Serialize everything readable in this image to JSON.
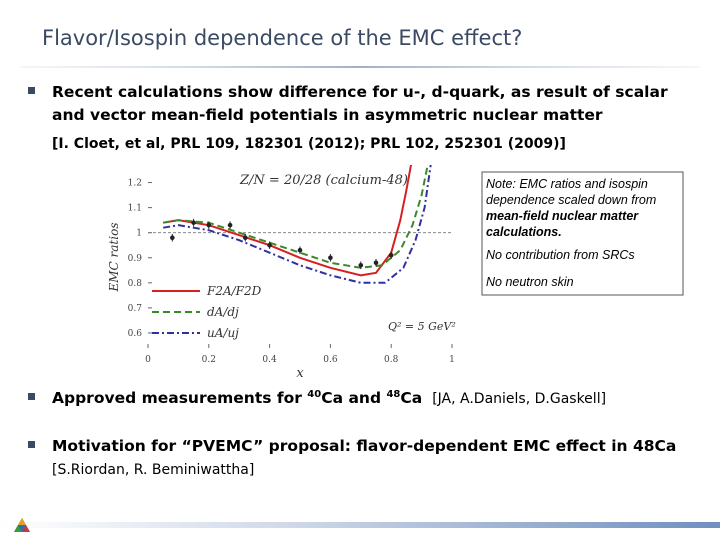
{
  "title": "Flavor/Isospin dependence of the EMC effect?",
  "bullets": [
    {
      "lines": [
        "Recent calculations show difference for u-, d-quark, as result of scalar",
        "and vector mean-field potentials in asymmetric nuclear matter"
      ],
      "citation": "[I. Cloet, et al, PRL 109, 182301 (2012); PRL 102, 252301 (2009)]"
    },
    {
      "segments": [
        {
          "text": "Approved measurements for "
        },
        {
          "text": "40",
          "sup": true
        },
        {
          "text": "Ca and "
        },
        {
          "text": "48",
          "sup": true
        },
        {
          "text": "Ca"
        }
      ],
      "citation": "[JA, A.Daniels, D.Gaskell]"
    },
    {
      "lines": [
        "Motivation for “PVEMC” proposal: flavor-dependent EMC effect in 48Ca"
      ],
      "citation": "[S.Riordan, R. Beminiwattha]"
    }
  ],
  "figure": {
    "type": "line",
    "annotation": "Z/N = 20/28   (calcium-48)",
    "xlabel": "x",
    "ylabel": "EMC ratios",
    "kinematics": "Q² = 5 GeV²",
    "xlim": [
      0,
      1
    ],
    "ylim": [
      0.54,
      1.27
    ],
    "xticks": [
      0,
      0.2,
      0.4,
      0.6,
      0.8,
      1
    ],
    "yticks": [
      0.6,
      0.7,
      0.8,
      0.9,
      1,
      1.1,
      1.2
    ],
    "reference_line": 1,
    "series": [
      {
        "name": "F2A/F2D",
        "color": "#d62020",
        "dash": "solid",
        "x": [
          0.05,
          0.1,
          0.2,
          0.3,
          0.4,
          0.5,
          0.6,
          0.7,
          0.75,
          0.8,
          0.83,
          0.85,
          0.865
        ],
        "values": [
          1.04,
          1.05,
          1.03,
          0.99,
          0.95,
          0.9,
          0.86,
          0.83,
          0.84,
          0.92,
          1.05,
          1.17,
          1.27
        ]
      },
      {
        "name": "dA/dj",
        "color": "#3a8a2a",
        "dash": "dashed",
        "x": [
          0.05,
          0.1,
          0.2,
          0.3,
          0.4,
          0.5,
          0.6,
          0.7,
          0.77,
          0.83,
          0.87,
          0.9,
          0.92
        ],
        "values": [
          1.04,
          1.05,
          1.04,
          1.0,
          0.96,
          0.92,
          0.88,
          0.86,
          0.87,
          0.93,
          1.03,
          1.15,
          1.27
        ]
      },
      {
        "name": "uA/uj",
        "color": "#3030a0",
        "dash": "dashdot",
        "x": [
          0.05,
          0.1,
          0.2,
          0.3,
          0.4,
          0.5,
          0.6,
          0.7,
          0.78,
          0.84,
          0.88,
          0.91,
          0.93
        ],
        "values": [
          1.02,
          1.03,
          1.01,
          0.97,
          0.92,
          0.87,
          0.83,
          0.8,
          0.8,
          0.86,
          0.97,
          1.1,
          1.27
        ]
      }
    ],
    "points": {
      "x": [
        0.08,
        0.15,
        0.2,
        0.27,
        0.32,
        0.4,
        0.5,
        0.6,
        0.7,
        0.75,
        0.8
      ],
      "values": [
        0.98,
        1.04,
        1.03,
        1.03,
        0.98,
        0.95,
        0.93,
        0.9,
        0.87,
        0.88,
        0.91
      ],
      "errors": [
        0.015,
        0.015,
        0.015,
        0.015,
        0.015,
        0.015,
        0.015,
        0.015,
        0.015,
        0.015,
        0.015
      ]
    }
  },
  "note": {
    "lines": [
      {
        "text": "Note: EMC ratios and isospin"
      },
      {
        "text": "dependence scaled down from"
      },
      {
        "text": "mean-field nuclear matter",
        "bold": true
      },
      {
        "text": "calculations.",
        "bold": true
      },
      {
        "text": "No contribution from SRCs",
        "gap": true
      },
      {
        "text": "No neutron skin",
        "gap": true
      }
    ]
  }
}
